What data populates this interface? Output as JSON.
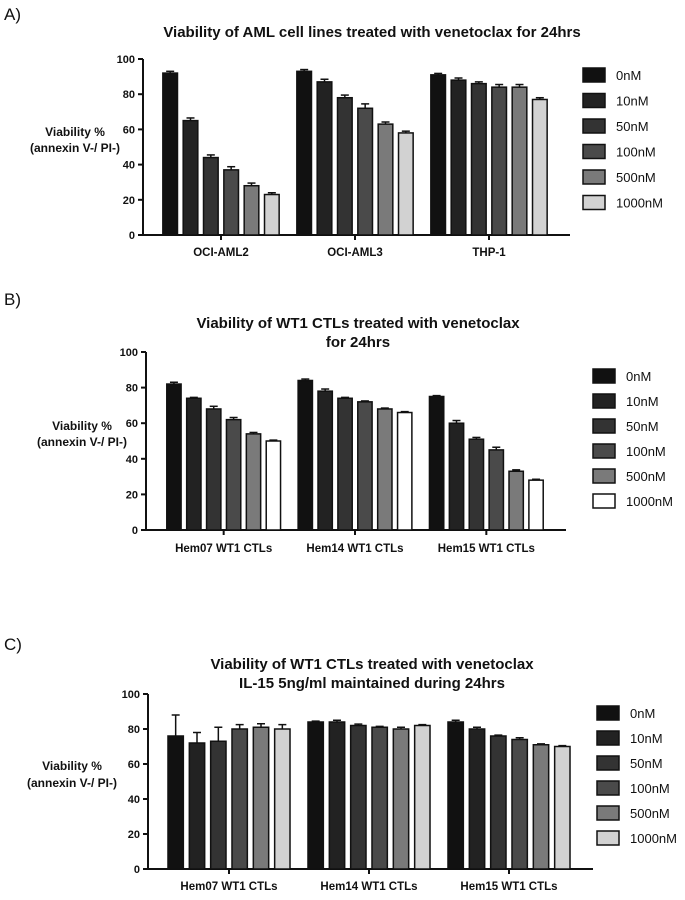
{
  "chart_data": [
    {
      "type": "bar",
      "panel": "A)",
      "title": [
        "Viability of AML cell lines treated with venetoclax for 24hrs"
      ],
      "ylabel": [
        "Viability %",
        "(annexin V-/ PI-)"
      ],
      "ylim": [
        0,
        100
      ],
      "yticks": [
        "0",
        "20",
        "40",
        "60",
        "80",
        "100"
      ],
      "categories": [
        "OCI-AML2",
        "OCI-AML3",
        "THP-1"
      ],
      "legend_position": "right",
      "series": [
        {
          "name": "0nM",
          "color": "#111111",
          "values": [
            92,
            93,
            91
          ],
          "errors": [
            1,
            1,
            0.8
          ]
        },
        {
          "name": "10nM",
          "color": "#222222",
          "values": [
            65,
            87,
            88
          ],
          "errors": [
            1.5,
            1.5,
            1.2
          ]
        },
        {
          "name": "50nM",
          "color": "#333333",
          "values": [
            44,
            78,
            86
          ],
          "errors": [
            1.5,
            1.5,
            1
          ]
        },
        {
          "name": "100nM",
          "color": "#4a4a4a",
          "values": [
            37,
            72,
            84
          ],
          "errors": [
            1.8,
            2.5,
            1.5
          ]
        },
        {
          "name": "500nM",
          "color": "#7a7a7a",
          "values": [
            28,
            63,
            84
          ],
          "errors": [
            1.5,
            1.2,
            1.5
          ]
        },
        {
          "name": "1000nM",
          "color": "#d2d2d2",
          "values": [
            23,
            58,
            77
          ],
          "errors": [
            1,
            1,
            1
          ]
        }
      ]
    },
    {
      "type": "bar",
      "panel": "B)",
      "title": [
        "Viability of WT1 CTLs treated with venetoclax",
        "for 24hrs"
      ],
      "ylabel": [
        "Viability %",
        "(annexin V-/ PI-)"
      ],
      "ylim": [
        0,
        100
      ],
      "yticks": [
        "0",
        "20",
        "40",
        "60",
        "80",
        "100"
      ],
      "categories": [
        "Hem07 WT1 CTLs",
        "Hem14 WT1 CTLs",
        "Hem15 WT1 CTLs"
      ],
      "legend_position": "right",
      "series": [
        {
          "name": "0nM",
          "color": "#111111",
          "values": [
            82,
            84,
            75
          ],
          "errors": [
            1,
            0.8,
            0.5
          ]
        },
        {
          "name": "10nM",
          "color": "#222222",
          "values": [
            74,
            78,
            60
          ],
          "errors": [
            0.5,
            1.2,
            1.5
          ]
        },
        {
          "name": "50nM",
          "color": "#333333",
          "values": [
            68,
            74,
            51
          ],
          "errors": [
            1.5,
            0.5,
            1
          ]
        },
        {
          "name": "100nM",
          "color": "#4a4a4a",
          "values": [
            62,
            72,
            45
          ],
          "errors": [
            1.2,
            0.5,
            1.5
          ]
        },
        {
          "name": "500nM",
          "color": "#7a7a7a",
          "values": [
            54,
            68,
            33
          ],
          "errors": [
            0.8,
            0.5,
            0.8
          ]
        },
        {
          "name": "1000nM",
          "color": "#ffffff",
          "values": [
            50,
            66,
            28
          ],
          "errors": [
            0.5,
            0.5,
            0.5
          ]
        }
      ]
    },
    {
      "type": "bar",
      "panel": "C)",
      "title": [
        "Viability of WT1 CTLs treated with venetoclax",
        "IL-15 5ng/ml maintained during 24hrs"
      ],
      "ylabel": [
        "Viability %",
        "(annexin V-/ PI-)"
      ],
      "ylim": [
        0,
        100
      ],
      "yticks": [
        "0",
        "20",
        "40",
        "60",
        "80",
        "100"
      ],
      "categories": [
        "Hem07 WT1 CTLs",
        "Hem14 WT1 CTLs",
        "Hem15 WT1 CTLs"
      ],
      "legend_position": "right",
      "series": [
        {
          "name": "0nM",
          "color": "#111111",
          "values": [
            76,
            84,
            84
          ],
          "errors": [
            12,
            0.5,
            1
          ]
        },
        {
          "name": "10nM",
          "color": "#222222",
          "values": [
            72,
            84,
            80
          ],
          "errors": [
            6,
            1,
            1
          ]
        },
        {
          "name": "50nM",
          "color": "#333333",
          "values": [
            73,
            82,
            76
          ],
          "errors": [
            8,
            0.8,
            0.5
          ]
        },
        {
          "name": "100nM",
          "color": "#4a4a4a",
          "values": [
            80,
            81,
            74
          ],
          "errors": [
            2.5,
            0.5,
            1
          ]
        },
        {
          "name": "500nM",
          "color": "#7a7a7a",
          "values": [
            81,
            80,
            71
          ],
          "errors": [
            2,
            1,
            0.5
          ]
        },
        {
          "name": "1000nM",
          "color": "#d2d2d2",
          "values": [
            80,
            82,
            70
          ],
          "errors": [
            2.5,
            0.5,
            0.5
          ]
        }
      ]
    }
  ]
}
